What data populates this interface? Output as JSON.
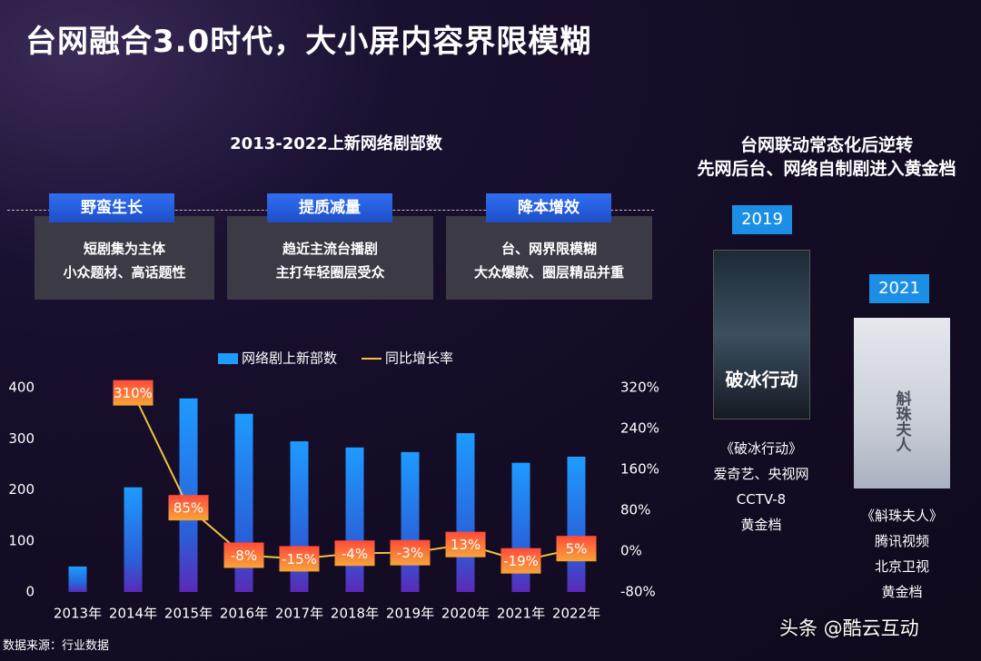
{
  "header": {
    "title": "台网融合3.0时代，大小屏内容界限模糊"
  },
  "phases": [
    {
      "tag": "野蛮生长",
      "lines": [
        "短剧集为主体",
        "小众题材、高话题性"
      ]
    },
    {
      "tag": "提质减量",
      "lines": [
        "趋近主流台播剧",
        "主打年轻圈层受众"
      ]
    },
    {
      "tag": "降本增效",
      "lines": [
        "台、网界限模糊",
        "大众爆款、圈层精品并重"
      ]
    }
  ],
  "chart_data": {
    "type": "bar",
    "title": "2013-2022上新网络剧部数",
    "categories": [
      "2013年",
      "2014年",
      "2015年",
      "2016年",
      "2017年",
      "2018年",
      "2019年",
      "2020年",
      "2021年",
      "2022年"
    ],
    "series": [
      {
        "name": "网络剧上新部数",
        "color": "#1e9bff",
        "values": [
          50,
          205,
          379,
          349,
          295,
          283,
          274,
          311,
          253,
          265
        ]
      },
      {
        "name": "同比增长率",
        "type": "line",
        "axis": "y2",
        "color": "#f5c242",
        "values": [
          null,
          310,
          85,
          -8,
          -15,
          -4,
          -3,
          13,
          -19,
          5
        ],
        "value_labels": [
          null,
          "310%",
          "85%",
          "-8%",
          "-15%",
          "-4%",
          "-3%",
          "13%",
          "-19%",
          "5%"
        ]
      }
    ],
    "ylim": [
      0,
      400
    ],
    "yticks": [
      0,
      100,
      200,
      300,
      400
    ],
    "y2lim": [
      -80,
      320
    ],
    "y2ticks": [
      {
        "value": -80,
        "label": "-80%"
      },
      {
        "value": 0,
        "label": "0%"
      },
      {
        "value": 80,
        "label": "80%"
      },
      {
        "value": 160,
        "label": "160%"
      },
      {
        "value": 240,
        "label": "240%"
      },
      {
        "value": 320,
        "label": "320%"
      }
    ],
    "grid": false,
    "legend": "top"
  },
  "right_panel": {
    "heading": [
      "台网联动常态化后逆转",
      "先网后台、网络自制剧进入黄金档"
    ],
    "shows": [
      {
        "year": "2019",
        "poster": "破冰行动",
        "title": "《破冰行动》",
        "lines": [
          "爱奇艺、央视网",
          "CCTV-8",
          "黄金档"
        ]
      },
      {
        "year": "2021",
        "poster": "斛珠夫人",
        "title": "《斛珠夫人》",
        "lines": [
          "腾讯视频",
          "北京卫视",
          "黄金档"
        ]
      }
    ]
  },
  "footer": {
    "source": "数据来源：行业数据",
    "watermark": "头条 @酷云互动"
  }
}
